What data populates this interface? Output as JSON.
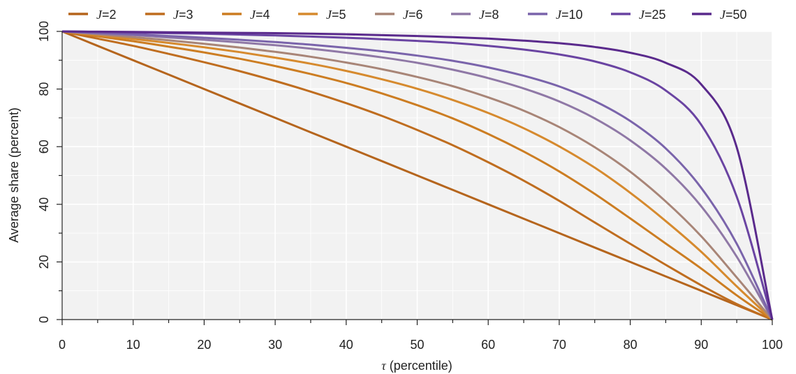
{
  "chart_data": {
    "type": "line",
    "title": "",
    "xlabel_symbol": "τ",
    "xlabel": " (percentile)",
    "ylabel": "Average share (percent)",
    "xlim": [
      0,
      100
    ],
    "ylim": [
      0,
      100
    ],
    "xticks": [
      0,
      10,
      20,
      30,
      40,
      50,
      60,
      70,
      80,
      90,
      100
    ],
    "yticks": [
      0,
      20,
      40,
      60,
      80,
      100
    ],
    "grid": true,
    "legend_position": "top",
    "legend_symbol": "J",
    "x": [
      0,
      5,
      10,
      15,
      20,
      25,
      30,
      35,
      40,
      45,
      50,
      55,
      60,
      65,
      70,
      75,
      80,
      85,
      90,
      95,
      100
    ],
    "series": [
      {
        "name": "=2",
        "color": "#b5651d",
        "values": [
          100.0,
          95.0,
          90.0,
          85.0,
          80.0,
          75.0,
          70.0,
          65.0,
          60.0,
          55.0,
          50.0,
          45.0,
          40.0,
          35.0,
          30.0,
          25.0,
          20.0,
          15.0,
          10.0,
          5.0,
          0.0
        ]
      },
      {
        "name": "=3",
        "color": "#bf6d1f",
        "values": [
          100.0,
          97.5,
          95.0,
          92.2,
          89.3,
          86.2,
          82.8,
          79.1,
          75.1,
          70.7,
          65.8,
          60.5,
          54.6,
          48.2,
          41.2,
          33.7,
          26.3,
          19.0,
          11.9,
          5.4,
          0.0
        ]
      },
      {
        "name": "=4",
        "color": "#cc7d22",
        "values": [
          100.0,
          98.3,
          96.6,
          94.7,
          92.7,
          90.5,
          88.0,
          85.2,
          82.1,
          78.5,
          74.4,
          69.8,
          64.4,
          58.3,
          51.4,
          43.6,
          35.1,
          26.4,
          17.7,
          8.4,
          0.0
        ]
      },
      {
        "name": "=5",
        "color": "#d68a2e",
        "values": [
          100.0,
          98.7,
          97.4,
          96.0,
          94.5,
          92.8,
          90.9,
          88.8,
          86.3,
          83.4,
          80.1,
          76.2,
          71.7,
          66.4,
          60.1,
          52.7,
          44.0,
          34.2,
          23.5,
          11.5,
          0.0
        ]
      },
      {
        "name": "=6",
        "color": "#a88577",
        "values": [
          100.0,
          99.0,
          98.0,
          96.9,
          95.7,
          94.4,
          92.9,
          91.2,
          89.2,
          86.9,
          84.2,
          81.0,
          77.1,
          72.5,
          66.8,
          59.8,
          51.3,
          41.0,
          28.9,
          14.6,
          0.0
        ]
      },
      {
        "name": "=8",
        "color": "#8f78a6",
        "values": [
          100.0,
          99.3,
          98.7,
          97.9,
          97.1,
          96.2,
          95.2,
          94.0,
          92.6,
          91.0,
          89.1,
          86.7,
          83.8,
          80.2,
          75.7,
          69.8,
          62.2,
          52.4,
          39.3,
          21.8,
          0.0
        ]
      },
      {
        "name": "=10",
        "color": "#7a64ab",
        "values": [
          100.0,
          99.5,
          99.0,
          98.4,
          97.8,
          97.1,
          96.3,
          95.4,
          94.3,
          93.1,
          91.6,
          89.8,
          87.5,
          84.6,
          80.9,
          75.8,
          68.9,
          59.4,
          45.7,
          26.3,
          0.0
        ]
      },
      {
        "name": "=25",
        "color": "#6a44a2",
        "values": [
          100.0,
          99.8,
          99.6,
          99.4,
          99.2,
          98.9,
          98.6,
          98.2,
          97.8,
          97.3,
          96.7,
          96.0,
          95.0,
          93.7,
          92.0,
          89.6,
          85.8,
          79.5,
          67.6,
          42.6,
          0.0
        ]
      },
      {
        "name": "=50",
        "color": "#5a2a8c",
        "values": [
          100.0,
          99.9,
          99.8,
          99.7,
          99.6,
          99.5,
          99.4,
          99.2,
          99.0,
          98.7,
          98.4,
          98.0,
          97.5,
          96.8,
          95.9,
          94.6,
          92.6,
          89.1,
          81.6,
          59.7,
          0.0
        ]
      }
    ]
  }
}
